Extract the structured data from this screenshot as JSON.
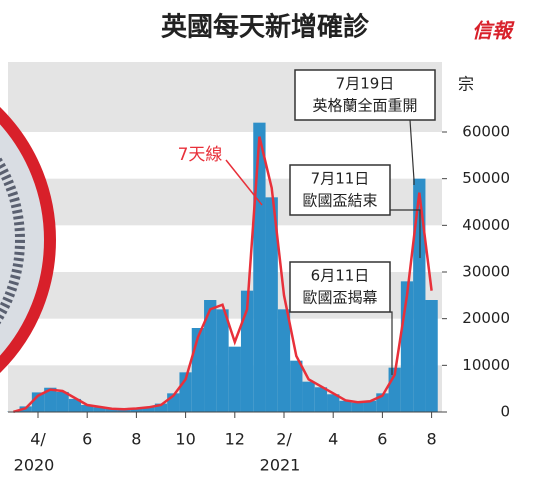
{
  "chart_data": {
    "type": "bar-line",
    "title": "英國每天新增確診",
    "logo": "信報",
    "y_unit": "宗",
    "categories": [
      null,
      null,
      "4/",
      null,
      null,
      null,
      "6",
      null,
      null,
      null,
      "8",
      null,
      null,
      null,
      "10",
      null,
      null,
      null,
      "12",
      null,
      null,
      null,
      "2/",
      null,
      null,
      null,
      "4",
      null,
      null,
      null,
      "6",
      null,
      null,
      null,
      "8"
    ],
    "year_labels": [
      "2020",
      "2021"
    ],
    "series": [
      {
        "color": "#2e8fc8",
        "values": [
          80,
          1200,
          4200,
          5200,
          4300,
          2800,
          1500,
          1000,
          650,
          600,
          800,
          1100,
          1800,
          4000,
          8500,
          18000,
          24000,
          22000,
          14000,
          26000,
          62000,
          46000,
          22000,
          11000,
          6500,
          5300,
          3800,
          2400,
          2000,
          2400,
          4000,
          9500,
          28000,
          50000,
          24000
        ]
      },
      {
        "name": "7天線",
        "color": "#e8303a",
        "values": [
          50,
          800,
          3500,
          4800,
          4500,
          3000,
          1500,
          1100,
          700,
          600,
          750,
          1000,
          1500,
          3500,
          7000,
          16000,
          22000,
          23000,
          15000,
          22000,
          59000,
          48000,
          25000,
          12000,
          7000,
          5500,
          4000,
          2500,
          2100,
          2300,
          3500,
          8000,
          25000,
          47000,
          26000
        ]
      }
    ],
    "ylim": [
      0,
      75000
    ],
    "yticks": [
      0,
      10000,
      20000,
      30000,
      40000,
      50000,
      60000
    ],
    "annotations": [
      {
        "lines": [
          "7月19日",
          "英格蘭全面重開"
        ]
      },
      {
        "lines": [
          "7月11日",
          "歐國盃結束"
        ]
      },
      {
        "lines": [
          "6月11日",
          "歐國盃揭幕"
        ]
      }
    ]
  }
}
